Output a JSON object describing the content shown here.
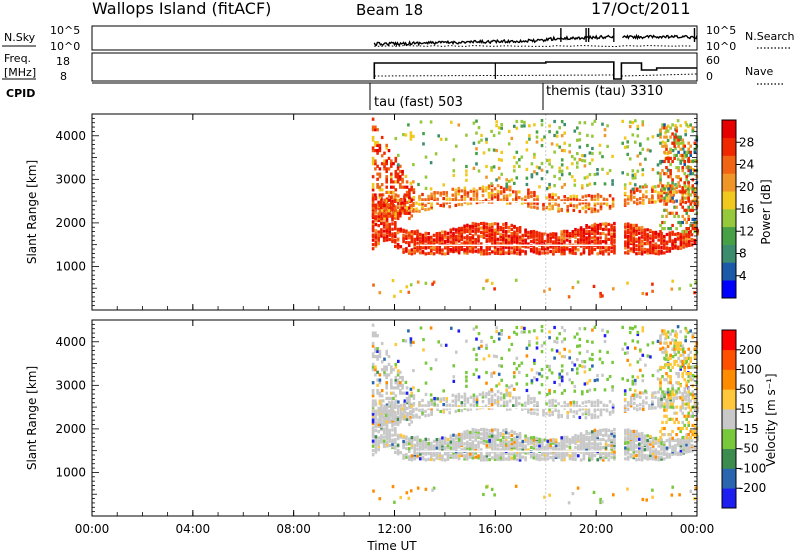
{
  "header": {
    "station": "Wallops Island (fitACF)",
    "beam": "Beam 18",
    "date": "17/Oct/2011"
  },
  "panels": {
    "nsky": {
      "label": "N.Sky",
      "ticks": [
        "10^5",
        "10^0"
      ],
      "right_label": "N.Search",
      "right_ticks": [
        "10^5",
        "10^0"
      ]
    },
    "freq": {
      "label_top": "Freq.",
      "label_bottom": "[MHz]",
      "ticks": [
        "18",
        "8"
      ],
      "right_label": "Nave",
      "right_ticks": [
        "60",
        "0"
      ]
    },
    "cpid": {
      "label": "CPID",
      "programs": [
        "tau (fast) 503",
        "themis (tau) 3310"
      ]
    }
  },
  "colors": {
    "power": [
      "#0000ff",
      "#1a5aa8",
      "#3c8c6e",
      "#46a046",
      "#96c83c",
      "#f0c81e",
      "#f09628",
      "#f06414",
      "#f02800",
      "#e60000"
    ],
    "velocity": [
      "#1e1ef0",
      "#2a66b0",
      "#3c8c50",
      "#78c83c",
      "#c8c8c8",
      "#ffc83c",
      "#ff8c00",
      "#ff5000",
      "#ff0000"
    ]
  },
  "chart_data": [
    {
      "type": "heatmap",
      "name": "power",
      "ylabel": "Slant Range [km]",
      "yticks": [
        1000,
        2000,
        3000,
        4000
      ],
      "ylim": [
        0,
        4500
      ],
      "xlim": [
        0,
        24
      ],
      "colorbar": {
        "label": "Power [dB]",
        "ticks": [
          "28",
          "24",
          "20",
          "16",
          "12",
          "8",
          "4"
        ],
        "range": [
          0,
          30
        ]
      }
    },
    {
      "type": "heatmap",
      "name": "velocity",
      "ylabel": "Slant Range [km]",
      "yticks": [
        1000,
        2000,
        3000,
        4000
      ],
      "ylim": [
        0,
        4500
      ],
      "xlim": [
        0,
        24
      ],
      "colorbar": {
        "label": "Velocity [m s⁻¹]",
        "ticks": [
          "200",
          "100",
          "50",
          "15",
          "-15",
          "-50",
          "-100",
          "-200"
        ]
      }
    }
  ],
  "x_axis": {
    "label": "Time UT",
    "ticks": [
      "00:00",
      "04:00",
      "08:00",
      "12:00",
      "16:00",
      "20:00",
      "00:00"
    ]
  }
}
